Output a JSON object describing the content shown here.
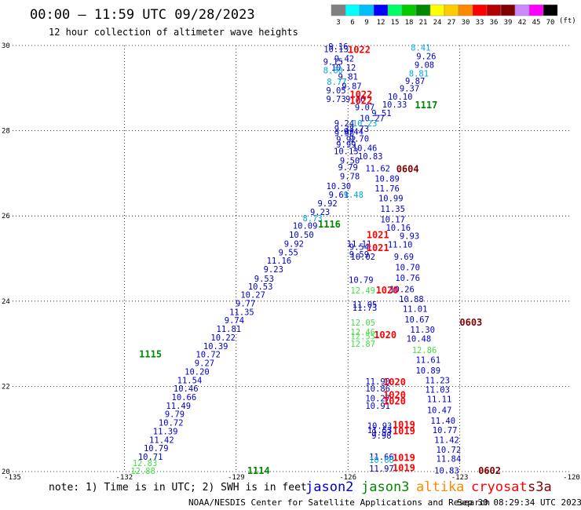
{
  "header": {
    "title": "00:00 – 11:59 UTC 09/28/2023",
    "subtitle": "12 hour collection of altimeter wave heights"
  },
  "color_scale": {
    "bins": [
      {
        "label": "3",
        "color": "#808080"
      },
      {
        "label": "6",
        "color": "#00ffff"
      },
      {
        "label": "9",
        "color": "#00bfff"
      },
      {
        "label": "12",
        "color": "#0000ff"
      },
      {
        "label": "15",
        "color": "#00ff66"
      },
      {
        "label": "18",
        "color": "#00cc00"
      },
      {
        "label": "21",
        "color": "#008800"
      },
      {
        "label": "24",
        "color": "#ffff00"
      },
      {
        "label": "27",
        "color": "#ffcc00"
      },
      {
        "label": "30",
        "color": "#ff8800"
      },
      {
        "label": "33",
        "color": "#ff0000"
      },
      {
        "label": "36",
        "color": "#b30000"
      },
      {
        "label": "39",
        "color": "#800000"
      },
      {
        "label": "42",
        "color": "#cc88ff"
      },
      {
        "label": "45",
        "color": "#ff00ff"
      },
      {
        "label": "70",
        "color": "#000000"
      }
    ],
    "unit": "(ft)"
  },
  "map": {
    "lon_ticks": [
      "-135",
      "-132",
      "-129",
      "-126",
      "-123",
      "-120"
    ],
    "lat_ticks": [
      "30",
      "28",
      "26",
      "24",
      "22",
      "20"
    ],
    "lon_range": [
      -135,
      -120
    ],
    "lat_range": [
      20,
      30
    ],
    "gridlines": true
  },
  "track_ids": [
    {
      "text": "1022",
      "lon": -125.7,
      "lat": 29.9,
      "color": "#ff0000"
    },
    {
      "text": "1022",
      "lon": -125.65,
      "lat": 28.85,
      "color": "#ff0000"
    },
    {
      "text": "1022",
      "lon": -125.65,
      "lat": 28.7,
      "color": "#ff0000"
    },
    {
      "text": "1117",
      "lon": -123.9,
      "lat": 28.6,
      "color": "#008800"
    },
    {
      "text": "0604",
      "lon": -124.4,
      "lat": 27.1,
      "color": "#800000"
    },
    {
      "text": "1116",
      "lon": -126.5,
      "lat": 25.8,
      "color": "#008800"
    },
    {
      "text": "1021",
      "lon": -125.2,
      "lat": 25.55,
      "color": "#ff0000"
    },
    {
      "text": "1021",
      "lon": -125.2,
      "lat": 25.25,
      "color": "#ff0000"
    },
    {
      "text": "1020",
      "lon": -124.95,
      "lat": 24.25,
      "color": "#ff0000"
    },
    {
      "text": "0603",
      "lon": -122.7,
      "lat": 23.5,
      "color": "#800000"
    },
    {
      "text": "1020",
      "lon": -125.0,
      "lat": 23.2,
      "color": "#ff0000"
    },
    {
      "text": "1115",
      "lon": -131.3,
      "lat": 22.75,
      "color": "#008800"
    },
    {
      "text": "1020",
      "lon": -124.75,
      "lat": 22.1,
      "color": "#ff0000"
    },
    {
      "text": "1020",
      "lon": -124.75,
      "lat": 21.8,
      "color": "#ff0000"
    },
    {
      "text": "1020",
      "lon": -124.75,
      "lat": 21.65,
      "color": "#ff0000"
    },
    {
      "text": "1019",
      "lon": -124.5,
      "lat": 21.1,
      "color": "#ff0000"
    },
    {
      "text": "1019",
      "lon": -124.5,
      "lat": 20.95,
      "color": "#ff0000"
    },
    {
      "text": "1019",
      "lon": -124.5,
      "lat": 20.32,
      "color": "#ff0000"
    },
    {
      "text": "1019",
      "lon": -124.5,
      "lat": 20.08,
      "color": "#ff0000"
    },
    {
      "text": "1114",
      "lon": -128.4,
      "lat": 20.02,
      "color": "#008800"
    },
    {
      "text": "0602",
      "lon": -122.2,
      "lat": 20.02,
      "color": "#800000"
    }
  ],
  "wave_labels": [
    {
      "text": "9.16",
      "lon": -126.26,
      "lat": 29.98,
      "color": "#0000cc"
    },
    {
      "text": "10.13",
      "lon": -126.32,
      "lat": 29.92,
      "color": "#0000cc"
    },
    {
      "text": "9.42",
      "lon": -126.1,
      "lat": 29.7,
      "color": "#0000cc"
    },
    {
      "text": "9.15",
      "lon": -126.4,
      "lat": 29.62,
      "color": "#0000cc"
    },
    {
      "text": "10.12",
      "lon": -126.12,
      "lat": 29.48,
      "color": "#0000cc"
    },
    {
      "text": "8.80",
      "lon": -126.4,
      "lat": 29.42,
      "color": "#00aadd"
    },
    {
      "text": "9.81",
      "lon": -126.0,
      "lat": 29.27,
      "color": "#0000cc"
    },
    {
      "text": "8.77",
      "lon": -126.3,
      "lat": 29.15,
      "color": "#00aadd"
    },
    {
      "text": "9.87",
      "lon": -125.9,
      "lat": 29.05,
      "color": "#0000cc"
    },
    {
      "text": "9.05",
      "lon": -126.32,
      "lat": 28.95,
      "color": "#0000cc"
    },
    {
      "text": "9.73",
      "lon": -126.32,
      "lat": 28.75,
      "color": "#0000cc"
    },
    {
      "text": "9.76",
      "lon": -125.8,
      "lat": 28.75,
      "color": "#0000cc"
    },
    {
      "text": "8.41",
      "lon": -124.05,
      "lat": 29.95,
      "color": "#00aadd"
    },
    {
      "text": "9.26",
      "lon": -123.9,
      "lat": 29.75,
      "color": "#0000cc"
    },
    {
      "text": "9.08",
      "lon": -123.95,
      "lat": 29.55,
      "color": "#0000cc"
    },
    {
      "text": "8.81",
      "lon": -124.1,
      "lat": 29.35,
      "color": "#00aadd"
    },
    {
      "text": "9.87",
      "lon": -124.2,
      "lat": 29.17,
      "color": "#0000cc"
    },
    {
      "text": "9.37",
      "lon": -124.35,
      "lat": 29.0,
      "color": "#0000cc"
    },
    {
      "text": "10.10",
      "lon": -124.6,
      "lat": 28.8,
      "color": "#0000cc"
    },
    {
      "text": "10.33",
      "lon": -124.75,
      "lat": 28.62,
      "color": "#0000cc"
    },
    {
      "text": "9.07",
      "lon": -125.55,
      "lat": 28.55,
      "color": "#0000cc"
    },
    {
      "text": "9.51",
      "lon": -125.1,
      "lat": 28.42,
      "color": "#0000cc"
    },
    {
      "text": "10.27",
      "lon": -125.35,
      "lat": 28.3,
      "color": "#0000cc"
    },
    {
      "text": "9.24",
      "lon": -126.1,
      "lat": 28.18,
      "color": "#0000cc"
    },
    {
      "text": "10.23",
      "lon": -125.55,
      "lat": 28.18,
      "color": "#00aadd"
    },
    {
      "text": "8.73",
      "lon": -125.7,
      "lat": 28.05,
      "color": "#0000cc"
    },
    {
      "text": "9.37",
      "lon": -126.1,
      "lat": 28.05,
      "color": "#0000cc"
    },
    {
      "text": "9.44",
      "lon": -125.85,
      "lat": 27.98,
      "color": "#0000cc"
    },
    {
      "text": "9.98",
      "lon": -126.1,
      "lat": 27.95,
      "color": "#0000cc"
    },
    {
      "text": "9.70",
      "lon": -125.7,
      "lat": 27.82,
      "color": "#0000cc"
    },
    {
      "text": "9.92",
      "lon": -126.05,
      "lat": 27.8,
      "color": "#0000cc"
    },
    {
      "text": "9.99",
      "lon": -126.05,
      "lat": 27.68,
      "color": "#0000cc"
    },
    {
      "text": "10.46",
      "lon": -125.55,
      "lat": 27.6,
      "color": "#0000cc"
    },
    {
      "text": "10.13",
      "lon": -126.05,
      "lat": 27.52,
      "color": "#0000cc"
    },
    {
      "text": "10.83",
      "lon": -125.4,
      "lat": 27.4,
      "color": "#0000cc"
    },
    {
      "text": "9.50",
      "lon": -125.95,
      "lat": 27.3,
      "color": "#0000cc"
    },
    {
      "text": "9.79",
      "lon": -126.0,
      "lat": 27.15,
      "color": "#0000cc"
    },
    {
      "text": "11.62",
      "lon": -125.2,
      "lat": 27.12,
      "color": "#0000cc"
    },
    {
      "text": "9.78",
      "lon": -125.95,
      "lat": 26.93,
      "color": "#0000cc"
    },
    {
      "text": "10.89",
      "lon": -124.95,
      "lat": 26.88,
      "color": "#0000cc"
    },
    {
      "text": "10.30",
      "lon": -126.25,
      "lat": 26.7,
      "color": "#0000cc"
    },
    {
      "text": "11.76",
      "lon": -124.95,
      "lat": 26.65,
      "color": "#0000cc"
    },
    {
      "text": "9.61",
      "lon": -126.25,
      "lat": 26.5,
      "color": "#0000cc"
    },
    {
      "text": "9.48",
      "lon": -125.85,
      "lat": 26.5,
      "color": "#00aadd"
    },
    {
      "text": "10.99",
      "lon": -124.85,
      "lat": 26.42,
      "color": "#0000cc"
    },
    {
      "text": "9.92",
      "lon": -126.55,
      "lat": 26.3,
      "color": "#0000cc"
    },
    {
      "text": "11.35",
      "lon": -124.8,
      "lat": 26.17,
      "color": "#0000cc"
    },
    {
      "text": "9.23",
      "lon": -126.75,
      "lat": 26.1,
      "color": "#0000cc"
    },
    {
      "text": "8.73",
      "lon": -126.95,
      "lat": 25.95,
      "color": "#00aadd"
    },
    {
      "text": "10.17",
      "lon": -124.8,
      "lat": 25.92,
      "color": "#0000cc"
    },
    {
      "text": "10.09",
      "lon": -127.15,
      "lat": 25.77,
      "color": "#0000cc"
    },
    {
      "text": "10.16",
      "lon": -124.65,
      "lat": 25.73,
      "color": "#0000cc"
    },
    {
      "text": "10.50",
      "lon": -127.25,
      "lat": 25.56,
      "color": "#0000cc"
    },
    {
      "text": "9.93",
      "lon": -124.35,
      "lat": 25.53,
      "color": "#0000cc"
    },
    {
      "text": "9.92",
      "lon": -127.45,
      "lat": 25.35,
      "color": "#0000cc"
    },
    {
      "text": "11.11",
      "lon": -125.7,
      "lat": 25.35,
      "color": "#0000cc"
    },
    {
      "text": "9.54",
      "lon": -125.7,
      "lat": 25.28,
      "color": "#0000cc"
    },
    {
      "text": "11.10",
      "lon": -124.6,
      "lat": 25.33,
      "color": "#0000cc"
    },
    {
      "text": "9.55",
      "lon": -127.6,
      "lat": 25.15,
      "color": "#0000cc"
    },
    {
      "text": "9.59",
      "lon": -125.7,
      "lat": 25.1,
      "color": "#0000cc"
    },
    {
      "text": "10.02",
      "lon": -125.6,
      "lat": 25.05,
      "color": "#0000cc"
    },
    {
      "text": "9.69",
      "lon": -124.5,
      "lat": 25.05,
      "color": "#0000cc"
    },
    {
      "text": "11.16",
      "lon": -127.85,
      "lat": 24.95,
      "color": "#0000cc"
    },
    {
      "text": "10.70",
      "lon": -124.4,
      "lat": 24.8,
      "color": "#0000cc"
    },
    {
      "text": "9.23",
      "lon": -128.0,
      "lat": 24.75,
      "color": "#0000cc"
    },
    {
      "text": "10.79",
      "lon": -125.65,
      "lat": 24.5,
      "color": "#0000cc"
    },
    {
      "text": "10.76",
      "lon": -124.4,
      "lat": 24.55,
      "color": "#0000cc"
    },
    {
      "text": "9.53",
      "lon": -128.25,
      "lat": 24.53,
      "color": "#0000cc"
    },
    {
      "text": "12.49",
      "lon": -125.6,
      "lat": 24.25,
      "color": "#44dd44"
    },
    {
      "text": "10.26",
      "lon": -124.55,
      "lat": 24.28,
      "color": "#0000cc"
    },
    {
      "text": "10.53",
      "lon": -128.35,
      "lat": 24.35,
      "color": "#0000cc"
    },
    {
      "text": "10.27",
      "lon": -128.55,
      "lat": 24.15,
      "color": "#0000cc"
    },
    {
      "text": "10.88",
      "lon": -124.3,
      "lat": 24.05,
      "color": "#0000cc"
    },
    {
      "text": "9.77",
      "lon": -128.75,
      "lat": 23.95,
      "color": "#0000cc"
    },
    {
      "text": "11.05",
      "lon": -125.55,
      "lat": 23.92,
      "color": "#0000cc"
    },
    {
      "text": "11.73",
      "lon": -125.55,
      "lat": 23.85,
      "color": "#0000cc"
    },
    {
      "text": "11.01",
      "lon": -124.2,
      "lat": 23.82,
      "color": "#0000cc"
    },
    {
      "text": "11.35",
      "lon": -128.85,
      "lat": 23.75,
      "color": "#0000cc"
    },
    {
      "text": "10.67",
      "lon": -124.15,
      "lat": 23.57,
      "color": "#0000cc"
    },
    {
      "text": "9.74",
      "lon": -129.05,
      "lat": 23.55,
      "color": "#0000cc"
    },
    {
      "text": "12.05",
      "lon": -125.6,
      "lat": 23.5,
      "color": "#44dd44"
    },
    {
      "text": "11.81",
      "lon": -129.2,
      "lat": 23.35,
      "color": "#0000cc"
    },
    {
      "text": "12.46",
      "lon": -125.6,
      "lat": 23.28,
      "color": "#44dd44"
    },
    {
      "text": "12.55",
      "lon": -125.6,
      "lat": 23.18,
      "color": "#44dd44"
    },
    {
      "text": "11.30",
      "lon": -124.0,
      "lat": 23.33,
      "color": "#0000cc"
    },
    {
      "text": "10.22",
      "lon": -129.35,
      "lat": 23.15,
      "color": "#0000cc"
    },
    {
      "text": "10.48",
      "lon": -124.1,
      "lat": 23.12,
      "color": "#0000cc"
    },
    {
      "text": "12.87",
      "lon": -125.6,
      "lat": 23.0,
      "color": "#44dd44"
    },
    {
      "text": "10.39",
      "lon": -129.55,
      "lat": 22.95,
      "color": "#0000cc"
    },
    {
      "text": "12.86",
      "lon": -123.95,
      "lat": 22.85,
      "color": "#44dd44"
    },
    {
      "text": "10.72",
      "lon": -129.75,
      "lat": 22.75,
      "color": "#0000cc"
    },
    {
      "text": "11.61",
      "lon": -123.85,
      "lat": 22.62,
      "color": "#0000cc"
    },
    {
      "text": "9.27",
      "lon": -129.85,
      "lat": 22.55,
      "color": "#0000cc"
    },
    {
      "text": "10.89",
      "lon": -123.85,
      "lat": 22.38,
      "color": "#0000cc"
    },
    {
      "text": "10.20",
      "lon": -130.05,
      "lat": 22.35,
      "color": "#0000cc"
    },
    {
      "text": "11.23",
      "lon": -123.6,
      "lat": 22.15,
      "color": "#0000cc"
    },
    {
      "text": "11.54",
      "lon": -130.25,
      "lat": 22.15,
      "color": "#0000cc"
    },
    {
      "text": "11.90",
      "lon": -125.2,
      "lat": 22.12,
      "color": "#0000cc"
    },
    {
      "text": "10.46",
      "lon": -130.35,
      "lat": 21.95,
      "color": "#0000cc"
    },
    {
      "text": "10.86",
      "lon": -125.2,
      "lat": 21.95,
      "color": "#0000cc"
    },
    {
      "text": "11.03",
      "lon": -123.6,
      "lat": 21.92,
      "color": "#0000cc"
    },
    {
      "text": "10.66",
      "lon": -130.4,
      "lat": 21.75,
      "color": "#0000cc"
    },
    {
      "text": "10.27",
      "lon": -125.2,
      "lat": 21.72,
      "color": "#0000cc"
    },
    {
      "text": "11.11",
      "lon": -123.55,
      "lat": 21.7,
      "color": "#0000cc"
    },
    {
      "text": "11.49",
      "lon": -130.55,
      "lat": 21.55,
      "color": "#0000cc"
    },
    {
      "text": "10.91",
      "lon": -125.2,
      "lat": 21.55,
      "color": "#0000cc"
    },
    {
      "text": "10.47",
      "lon": -123.55,
      "lat": 21.45,
      "color": "#0000cc"
    },
    {
      "text": "9.79",
      "lon": -130.65,
      "lat": 21.35,
      "color": "#0000cc"
    },
    {
      "text": "11.40",
      "lon": -123.45,
      "lat": 21.2,
      "color": "#0000cc"
    },
    {
      "text": "10.72",
      "lon": -130.75,
      "lat": 21.15,
      "color": "#0000cc"
    },
    {
      "text": "10.93",
      "lon": -125.15,
      "lat": 21.08,
      "color": "#0000cc"
    },
    {
      "text": "11.53",
      "lon": -125.15,
      "lat": 20.98,
      "color": "#0000cc"
    },
    {
      "text": "9.53",
      "lon": -125.1,
      "lat": 20.92,
      "color": "#0000cc"
    },
    {
      "text": "10.77",
      "lon": -123.4,
      "lat": 20.98,
      "color": "#0000cc"
    },
    {
      "text": "11.39",
      "lon": -130.9,
      "lat": 20.95,
      "color": "#0000cc"
    },
    {
      "text": "9.98",
      "lon": -125.1,
      "lat": 20.85,
      "color": "#0000cc"
    },
    {
      "text": "11.42",
      "lon": -131.0,
      "lat": 20.75,
      "color": "#0000cc"
    },
    {
      "text": "11.42",
      "lon": -123.35,
      "lat": 20.75,
      "color": "#0000cc"
    },
    {
      "text": "10.79",
      "lon": -131.15,
      "lat": 20.55,
      "color": "#0000cc"
    },
    {
      "text": "10.72",
      "lon": -123.3,
      "lat": 20.52,
      "color": "#0000cc"
    },
    {
      "text": "10.71",
      "lon": -131.3,
      "lat": 20.35,
      "color": "#0000cc"
    },
    {
      "text": "11.66",
      "lon": -125.1,
      "lat": 20.35,
      "color": "#0000cc"
    },
    {
      "text": "11.84",
      "lon": -123.3,
      "lat": 20.3,
      "color": "#0000cc"
    },
    {
      "text": "10.66",
      "lon": -125.1,
      "lat": 20.28,
      "color": "#00aadd"
    },
    {
      "text": "12.83",
      "lon": -131.45,
      "lat": 20.2,
      "color": "#44dd44"
    },
    {
      "text": "11.97",
      "lon": -125.1,
      "lat": 20.07,
      "color": "#0000cc"
    },
    {
      "text": "10.83",
      "lon": -123.35,
      "lat": 20.03,
      "color": "#0000cc"
    },
    {
      "text": "12.88",
      "lon": -131.5,
      "lat": 20.02,
      "color": "#44dd44"
    }
  ],
  "legend": {
    "note": "note: 1) Time is in UTC; 2) SWH is in feet",
    "satellites": [
      {
        "name": "jason2",
        "color": "#0000cc"
      },
      {
        "name": "jason3",
        "color": "#008800"
      },
      {
        "name": "altika",
        "color": "#ff8800"
      },
      {
        "name": "cryosat",
        "color": "#ff0000"
      },
      {
        "name": "s3a",
        "color": "#800000"
      }
    ]
  },
  "footer": {
    "credit": "NOAA/NESDIS Center for Satellite Applications and Research",
    "timestamp": "Sep 30 08:29:34 UTC 2023"
  }
}
